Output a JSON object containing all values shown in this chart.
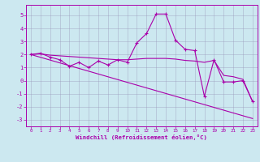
{
  "xlabel": "Windchill (Refroidissement éolien,°C)",
  "bg_color": "#cce8f0",
  "line_color": "#aa00aa",
  "grid_color": "#9999bb",
  "xlim": [
    -0.5,
    23.5
  ],
  "ylim": [
    -3.5,
    5.8
  ],
  "yticks": [
    -3,
    -2,
    -1,
    0,
    1,
    2,
    3,
    4,
    5
  ],
  "xticks": [
    0,
    1,
    2,
    3,
    4,
    5,
    6,
    7,
    8,
    9,
    10,
    11,
    12,
    13,
    14,
    15,
    16,
    17,
    18,
    19,
    20,
    21,
    22,
    23
  ],
  "line1_x": [
    0,
    1,
    2,
    3,
    4,
    5,
    6,
    7,
    8,
    9,
    10,
    11,
    12,
    13,
    14,
    15,
    16,
    17,
    18,
    19,
    20,
    21,
    22,
    23
  ],
  "line1_y": [
    2.0,
    2.1,
    1.8,
    1.6,
    1.1,
    1.4,
    1.0,
    1.5,
    1.2,
    1.6,
    1.4,
    2.9,
    3.6,
    5.1,
    5.1,
    3.1,
    2.4,
    2.3,
    -1.2,
    1.6,
    -0.1,
    -0.1,
    0.0,
    -1.6
  ],
  "line2_x": [
    0,
    1,
    2,
    3,
    4,
    5,
    6,
    7,
    8,
    9,
    10,
    11,
    12,
    13,
    14,
    15,
    16,
    17,
    18,
    19,
    20,
    21,
    22,
    23
  ],
  "line2_y": [
    2.0,
    2.05,
    1.95,
    1.9,
    1.85,
    1.8,
    1.75,
    1.7,
    1.65,
    1.6,
    1.6,
    1.65,
    1.7,
    1.7,
    1.7,
    1.65,
    1.55,
    1.5,
    1.4,
    1.55,
    0.4,
    0.3,
    0.1,
    -1.6
  ],
  "line3_x": [
    0,
    23
  ],
  "line3_y": [
    2.0,
    -2.9
  ]
}
